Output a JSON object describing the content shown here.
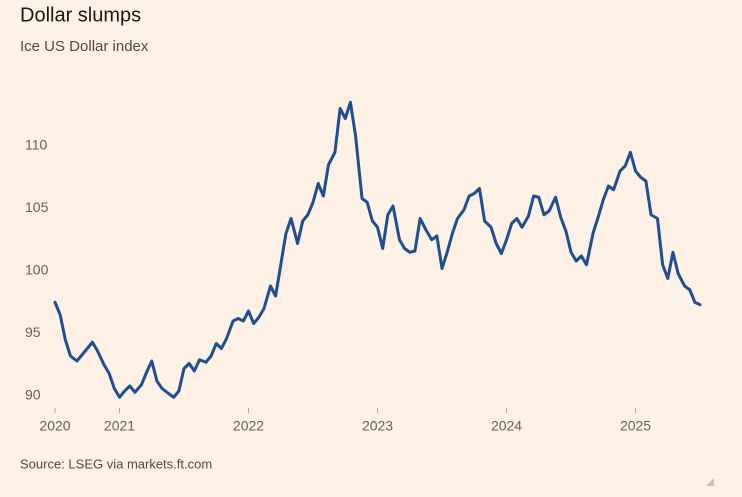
{
  "chart_data": {
    "type": "line",
    "title": "Dollar slumps",
    "subtitle": "Ice US Dollar index",
    "source": "Source: LSEG via markets.ft.com",
    "x": [
      2020.5,
      2020.54,
      2020.58,
      2020.62,
      2020.67,
      2020.71,
      2020.75,
      2020.79,
      2020.83,
      2020.88,
      2020.92,
      2020.96,
      2021.0,
      2021.04,
      2021.08,
      2021.12,
      2021.17,
      2021.21,
      2021.25,
      2021.29,
      2021.33,
      2021.38,
      2021.42,
      2021.46,
      2021.5,
      2021.54,
      2021.58,
      2021.62,
      2021.67,
      2021.71,
      2021.75,
      2021.79,
      2021.83,
      2021.88,
      2021.92,
      2021.96,
      2022.0,
      2022.04,
      2022.08,
      2022.12,
      2022.17,
      2022.21,
      2022.25,
      2022.29,
      2022.33,
      2022.38,
      2022.42,
      2022.46,
      2022.5,
      2022.54,
      2022.58,
      2022.62,
      2022.67,
      2022.71,
      2022.75,
      2022.79,
      2022.83,
      2022.88,
      2022.92,
      2022.96,
      2023.0,
      2023.04,
      2023.08,
      2023.12,
      2023.17,
      2023.21,
      2023.25,
      2023.29,
      2023.33,
      2023.38,
      2023.42,
      2023.46,
      2023.5,
      2023.54,
      2023.58,
      2023.62,
      2023.67,
      2023.71,
      2023.75,
      2023.79,
      2023.83,
      2023.88,
      2023.92,
      2023.96,
      2024.0,
      2024.04,
      2024.08,
      2024.12,
      2024.17,
      2024.21,
      2024.25,
      2024.29,
      2024.33,
      2024.38,
      2024.42,
      2024.46,
      2024.5,
      2024.54,
      2024.58,
      2024.62,
      2024.67,
      2024.71,
      2024.75,
      2024.79,
      2024.83,
      2024.88,
      2024.92,
      2024.96,
      2025.0,
      2025.04,
      2025.08,
      2025.12,
      2025.17,
      2025.21,
      2025.25,
      2025.29,
      2025.33,
      2025.38,
      2025.42,
      2025.46,
      2025.5
    ],
    "series": [
      {
        "name": "Ice US Dollar index",
        "color": "#1d4f91",
        "values": [
          97.5,
          96.5,
          94.5,
          93.2,
          92.8,
          93.3,
          93.8,
          94.3,
          93.6,
          92.5,
          91.8,
          90.6,
          89.9,
          90.4,
          90.8,
          90.3,
          90.9,
          91.9,
          92.8,
          91.2,
          90.6,
          90.2,
          89.9,
          90.4,
          92.2,
          92.6,
          92.0,
          92.9,
          92.7,
          93.2,
          94.2,
          93.8,
          94.6,
          96.0,
          96.2,
          96.0,
          96.8,
          95.8,
          96.3,
          97.0,
          98.8,
          98.0,
          100.5,
          103.0,
          104.2,
          102.2,
          104.0,
          104.5,
          105.5,
          107.0,
          106.0,
          108.5,
          109.5,
          113.0,
          112.2,
          113.5,
          110.8,
          105.8,
          105.5,
          104.0,
          103.5,
          101.8,
          104.5,
          105.2,
          102.5,
          101.8,
          101.5,
          101.6,
          104.2,
          103.2,
          102.5,
          102.8,
          100.2,
          101.5,
          103.0,
          104.2,
          104.9,
          106.0,
          106.2,
          106.6,
          104.0,
          103.5,
          102.2,
          101.4,
          102.5,
          103.8,
          104.2,
          103.5,
          104.4,
          106.0,
          105.9,
          104.5,
          104.8,
          105.9,
          104.3,
          103.2,
          101.5,
          100.8,
          101.2,
          100.5,
          103.0,
          104.3,
          105.7,
          106.8,
          106.5,
          108.0,
          108.4,
          109.5,
          108.0,
          107.5,
          107.2,
          104.5,
          104.2,
          100.5,
          99.4,
          101.5,
          99.8,
          98.8,
          98.5,
          97.5,
          97.3
        ]
      }
    ],
    "xlim": [
      2020.5,
      2025.55
    ],
    "xticks": [
      {
        "value": 2020.5,
        "label": "2020"
      },
      2021,
      2022,
      2023,
      2024,
      2025
    ],
    "ylim": [
      89.3,
      115
    ],
    "yticks": [
      90,
      95,
      100,
      105,
      110
    ],
    "grid": false
  }
}
